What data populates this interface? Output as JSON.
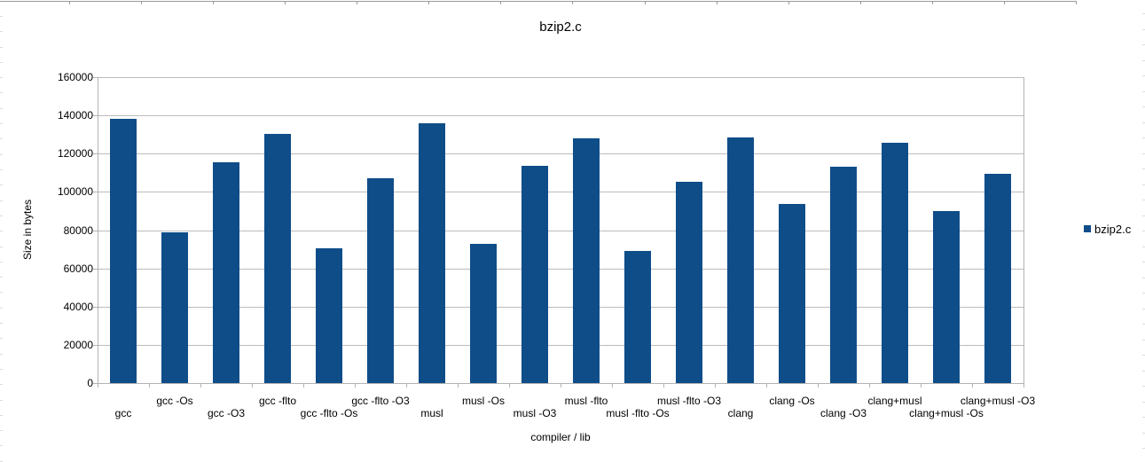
{
  "chart_data": {
    "type": "bar",
    "title": "bzip2.c",
    "xlabel": "compiler / lib",
    "ylabel": "Size in bytes",
    "legend_label": "bzip2.c",
    "legend_position": "right",
    "grid": true,
    "ylim": [
      0,
      160000
    ],
    "ytick_step": 20000,
    "series_color": "#0F4D89",
    "categories": [
      "gcc",
      "gcc -Os",
      "gcc -O3",
      "gcc -flto",
      "gcc -flto -Os",
      "gcc -flto -O3",
      "musl",
      "musl -Os",
      "musl -O3",
      "musl -flto",
      "musl -flto -Os",
      "musl -flto -O3",
      "clang",
      "clang -Os",
      "clang -O3",
      "clang+musl",
      "clang+musl -Os",
      "clang+musl -O3"
    ],
    "values": [
      138000,
      79000,
      115400,
      130200,
      70500,
      107300,
      135700,
      72900,
      113700,
      127900,
      69000,
      105400,
      128500,
      93800,
      113200,
      125600,
      90200,
      109300
    ]
  },
  "colors": {
    "bar": "#0F4D89",
    "gridline": "#bcbcbc",
    "axis": "#b3b3b3",
    "edge_line": "#9b9b9b",
    "edge_dash": "#dcdcdc"
  }
}
